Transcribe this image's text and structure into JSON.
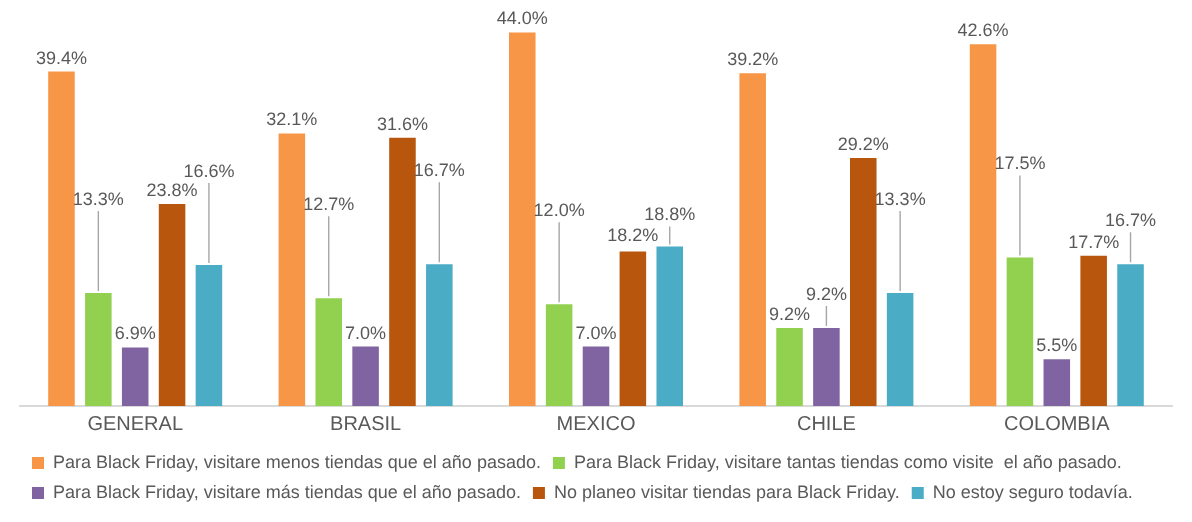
{
  "chart_data": {
    "type": "bar",
    "categories": [
      "GENERAL",
      "BRASIL",
      "MEXICO",
      "CHILE",
      "COLOMBIA"
    ],
    "legend": "bottom",
    "grid": false,
    "series": [
      {
        "name": "Para Black Friday, visitare menos tiendas que el año pasado.",
        "color": "#f79646",
        "values": [
          39.4,
          32.1,
          44.0,
          39.2,
          42.6
        ],
        "value_labels": [
          "39.4%",
          "32.1%",
          "44.0%",
          "39.2%",
          "42.6%"
        ]
      },
      {
        "name": "Para Black Friday, visitare tantas tiendas como visite  el año pasado.",
        "color": "#92d050",
        "values": [
          13.3,
          12.7,
          12.0,
          9.2,
          17.5
        ],
        "value_labels": [
          "13.3%",
          "12.7%",
          "12.0%",
          "9.2%",
          "17.5%"
        ]
      },
      {
        "name": "Para Black Friday, visitare más tiendas que el año pasado.",
        "color": "#8064a2",
        "values": [
          6.9,
          7.0,
          7.0,
          9.2,
          5.5
        ],
        "value_labels": [
          "6.9%",
          "7.0%",
          "7.0%",
          "9.2%",
          "5.5%"
        ]
      },
      {
        "name": "No planeo visitar tiendas para Black Friday.",
        "color": "#b7560c",
        "values": [
          23.8,
          31.6,
          18.2,
          29.2,
          17.7
        ],
        "value_labels": [
          "23.8%",
          "31.6%",
          "18.2%",
          "29.2%",
          "17.7%"
        ]
      },
      {
        "name": "No estoy seguro todavía.",
        "color": "#4bacc6",
        "values": [
          16.6,
          16.7,
          18.8,
          13.3,
          16.7
        ],
        "value_labels": [
          "16.6%",
          "16.7%",
          "18.8%",
          "13.3%",
          "16.7%"
        ]
      }
    ]
  }
}
